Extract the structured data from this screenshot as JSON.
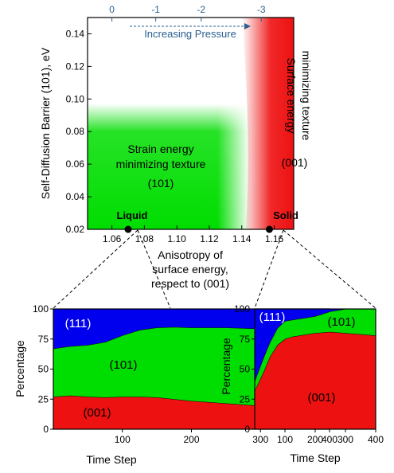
{
  "colors": {
    "green": "#00dd00",
    "red": "#ee1111",
    "blue": "#0000ee",
    "pressure": "#2a5f8f",
    "axis": "#000000"
  },
  "chart_data": [
    {
      "id": "phase-map",
      "type": "heatmap",
      "xlabel": "Anisotropy of surface energy, respect to (001)",
      "xlabel_lines": [
        "Anisotropy of",
        "surface energy,",
        "respect to (001)"
      ],
      "ylabel": "Self-Diffusion Barrier (101), eV",
      "xlim": [
        1.045,
        1.172
      ],
      "ylim": [
        0.02,
        0.15
      ],
      "xticks": [
        1.06,
        1.08,
        1.1,
        1.12,
        1.14,
        1.16
      ],
      "xtick_labels": [
        "1.06",
        "1.08",
        "1.10",
        "1.12",
        "1.14",
        "1.16"
      ],
      "yticks": [
        0.02,
        0.04,
        0.06,
        0.08,
        0.1,
        0.12,
        0.14
      ],
      "ytick_labels": [
        "0.02",
        "0.04",
        "0.06",
        "0.08",
        "0.10",
        "0.12",
        "0.14"
      ],
      "top_axis": {
        "ticks": [
          1.06,
          1.087,
          1.115,
          1.152
        ],
        "tick_labels": [
          "0",
          "-1",
          "-2",
          "-3"
        ],
        "arrow_label": "Increasing Pressure"
      },
      "regions": [
        {
          "name": "Strain energy minimizing texture",
          "phase": "(101)",
          "color": "green",
          "lines": [
            "Strain energy",
            "minimizing texture"
          ],
          "x_range": [
            1.045,
            1.145
          ],
          "y_range": [
            0.02,
            0.097
          ]
        },
        {
          "name": "Surface energy minimizing texture",
          "phase": "(001)",
          "color": "red",
          "lines": [
            "Surface energy",
            "minimizing texture"
          ],
          "x_range": [
            1.145,
            1.172
          ],
          "y_range": [
            0.02,
            0.15
          ]
        }
      ],
      "points": [
        {
          "label": "Liquid",
          "x": 1.07,
          "y": 0.02
        },
        {
          "label": "Solid",
          "x": 1.157,
          "y": 0.02
        }
      ]
    },
    {
      "id": "liquid-composition",
      "type": "area",
      "xlabel": "Time Step",
      "ylabel": "Percentage",
      "xlim": [
        0,
        400
      ],
      "ylim": [
        0,
        100
      ],
      "xticks": [
        100,
        200,
        300,
        400
      ],
      "xtick_labels": [
        "100",
        "200",
        "300",
        "400"
      ],
      "yticks": [
        0,
        25,
        50,
        75,
        100
      ],
      "ytick_labels": [
        "0",
        "25",
        "50",
        "75",
        "100"
      ],
      "x": [
        0,
        25,
        50,
        75,
        100,
        125,
        150,
        175,
        200,
        250,
        300,
        350,
        400
      ],
      "series": [
        {
          "name": "(001)",
          "color": "red",
          "values": [
            27,
            28,
            27,
            26.5,
            27,
            27,
            26.5,
            25,
            23.5,
            21.5,
            19.5,
            18,
            16.5
          ]
        },
        {
          "name": "(101)",
          "color": "green",
          "values": [
            40,
            41,
            43,
            46,
            51,
            55.5,
            58,
            60,
            61,
            63,
            64,
            65,
            66
          ]
        },
        {
          "name": "(111)",
          "color": "blue",
          "values": [
            33,
            31,
            30,
            27.5,
            22,
            17.5,
            15.5,
            15,
            15.5,
            15.5,
            16.5,
            17,
            17.5
          ]
        }
      ]
    },
    {
      "id": "solid-composition",
      "type": "area",
      "xlabel": "Time Step",
      "ylabel": "Percentage",
      "xlim": [
        0,
        400
      ],
      "ylim": [
        0,
        100
      ],
      "xticks": [
        100,
        200,
        300,
        400
      ],
      "xtick_labels": [
        "100",
        "200",
        "300",
        "400"
      ],
      "yticks": [
        0,
        25,
        50,
        75,
        100
      ],
      "ytick_labels": [
        "0",
        "25",
        "50",
        "75",
        "100"
      ],
      "x": [
        0,
        15,
        30,
        50,
        75,
        100,
        125,
        150,
        200,
        250,
        300,
        350,
        400
      ],
      "series": [
        {
          "name": "(001)",
          "color": "red",
          "values": [
            32,
            40,
            48,
            60,
            70,
            75,
            77,
            78,
            80,
            81,
            80,
            79,
            78
          ]
        },
        {
          "name": "(101)",
          "color": "green",
          "values": [
            8,
            10,
            12,
            12,
            14,
            15,
            14,
            14,
            14,
            17,
            20,
            21,
            22
          ]
        },
        {
          "name": "(111)",
          "color": "blue",
          "values": [
            60,
            50,
            40,
            28,
            16,
            10,
            9,
            8,
            6,
            2,
            0,
            0,
            0
          ]
        }
      ]
    }
  ]
}
